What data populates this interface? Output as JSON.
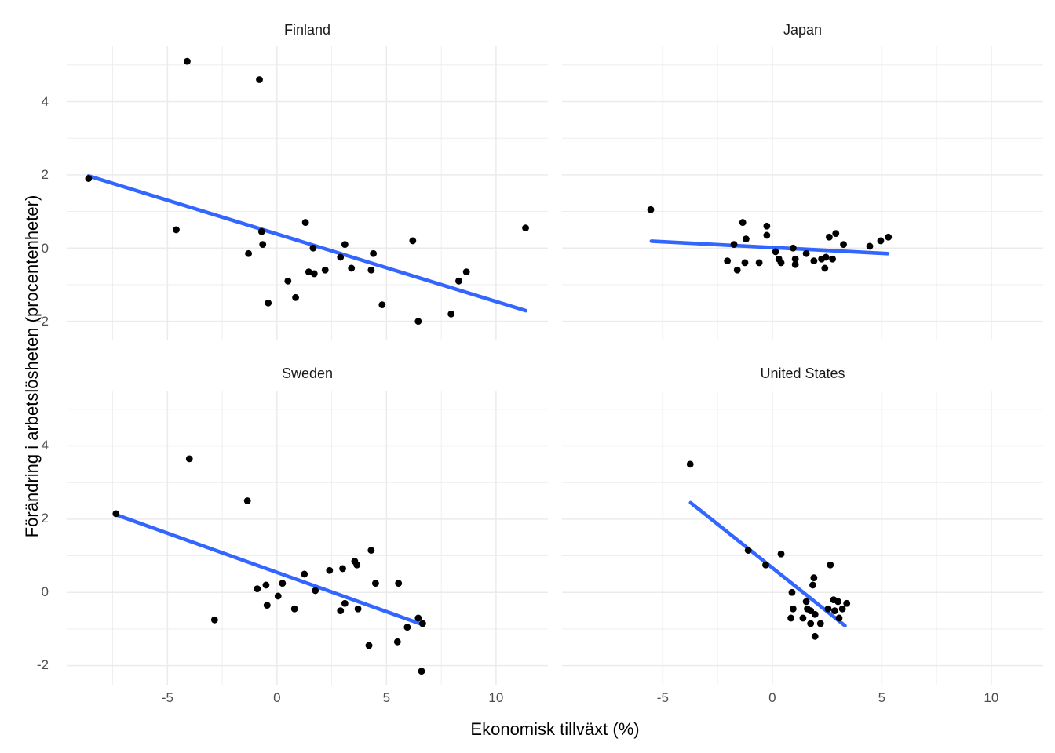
{
  "chart_data": {
    "type": "scatter",
    "title": "",
    "xlabel": "Ekonomisk tillväxt (%)",
    "ylabel": "Förändring i arbetslösheten (procentenheter)",
    "x_ticks": [
      -5,
      0,
      5,
      10
    ],
    "y_ticks": [
      -2,
      0,
      2,
      4
    ],
    "x_minor_ticks": [
      -7.5,
      -2.5,
      2.5,
      7.5
    ],
    "y_minor_ticks": [
      -1,
      1,
      3,
      5
    ],
    "xlim": [
      -9.6,
      12.37
    ],
    "ylim": [
      -2.53,
      5.51
    ],
    "grid": true,
    "legend": "none",
    "point_color": "#000000",
    "trend_color": "#3366FF",
    "grid_color": "#ebebeb",
    "tick_color": "#4d4d4d",
    "facets": [
      {
        "title": "Finland",
        "trend": {
          "x1": -8.6,
          "y1": 1.97,
          "x2": 11.36,
          "y2": -1.71
        },
        "points": [
          [
            -8.6,
            1.9
          ],
          [
            -4.6,
            0.5
          ],
          [
            -4.1,
            5.1
          ],
          [
            -1.3,
            -0.15
          ],
          [
            -0.8,
            4.6
          ],
          [
            -0.7,
            0.45
          ],
          [
            -0.65,
            0.1
          ],
          [
            -0.4,
            -1.5
          ],
          [
            0.5,
            -0.9
          ],
          [
            0.85,
            -1.35
          ],
          [
            1.3,
            0.7
          ],
          [
            1.45,
            -0.65
          ],
          [
            1.65,
            0.0
          ],
          [
            1.7,
            -0.7
          ],
          [
            2.2,
            -0.6
          ],
          [
            2.9,
            -0.25
          ],
          [
            3.1,
            0.1
          ],
          [
            3.4,
            -0.55
          ],
          [
            4.3,
            -0.6
          ],
          [
            4.4,
            -0.15
          ],
          [
            4.8,
            -1.55
          ],
          [
            6.2,
            0.2
          ],
          [
            6.45,
            -2.0
          ],
          [
            7.95,
            -1.8
          ],
          [
            8.3,
            -0.9
          ],
          [
            8.65,
            -0.65
          ],
          [
            11.35,
            0.55
          ]
        ]
      },
      {
        "title": "Japan",
        "trend": {
          "x1": -5.52,
          "y1": 0.19,
          "x2": 5.27,
          "y2": -0.15
        },
        "points": [
          [
            -5.55,
            1.05
          ],
          [
            -2.05,
            -0.35
          ],
          [
            -1.75,
            0.1
          ],
          [
            -1.6,
            -0.6
          ],
          [
            -1.35,
            0.7
          ],
          [
            -1.25,
            -0.4
          ],
          [
            -1.2,
            0.25
          ],
          [
            -0.6,
            -0.4
          ],
          [
            -0.25,
            0.6
          ],
          [
            -0.25,
            0.35
          ],
          [
            0.15,
            -0.1
          ],
          [
            0.3,
            -0.3
          ],
          [
            0.4,
            -0.4
          ],
          [
            0.95,
            0.0
          ],
          [
            1.05,
            -0.3
          ],
          [
            1.05,
            -0.45
          ],
          [
            1.55,
            -0.15
          ],
          [
            1.9,
            -0.35
          ],
          [
            2.25,
            -0.3
          ],
          [
            2.4,
            -0.55
          ],
          [
            2.45,
            -0.25
          ],
          [
            2.6,
            0.3
          ],
          [
            2.75,
            -0.3
          ],
          [
            2.9,
            0.4
          ],
          [
            3.25,
            0.1
          ],
          [
            4.45,
            0.05
          ],
          [
            4.95,
            0.2
          ],
          [
            5.3,
            0.3
          ]
        ]
      },
      {
        "title": "Sweden",
        "trend": {
          "x1": -7.34,
          "y1": 2.12,
          "x2": 6.61,
          "y2": -0.87
        },
        "points": [
          [
            -7.35,
            2.15
          ],
          [
            -4.0,
            3.65
          ],
          [
            -2.85,
            -0.75
          ],
          [
            -1.35,
            2.5
          ],
          [
            -0.9,
            0.1
          ],
          [
            -0.5,
            0.2
          ],
          [
            -0.45,
            -0.35
          ],
          [
            0.05,
            -0.1
          ],
          [
            0.25,
            0.25
          ],
          [
            0.8,
            -0.45
          ],
          [
            1.25,
            0.5
          ],
          [
            1.75,
            0.05
          ],
          [
            2.4,
            0.6
          ],
          [
            2.9,
            -0.5
          ],
          [
            3.0,
            0.65
          ],
          [
            3.1,
            -0.3
          ],
          [
            3.55,
            0.85
          ],
          [
            3.65,
            0.75
          ],
          [
            3.7,
            -0.45
          ],
          [
            4.2,
            -1.45
          ],
          [
            4.3,
            1.15
          ],
          [
            4.5,
            0.25
          ],
          [
            5.5,
            -1.35
          ],
          [
            5.55,
            0.25
          ],
          [
            5.95,
            -0.95
          ],
          [
            6.45,
            -0.7
          ],
          [
            6.6,
            -2.15
          ],
          [
            6.65,
            -0.85
          ]
        ]
      },
      {
        "title": "United States",
        "trend": {
          "x1": -3.73,
          "y1": 2.45,
          "x2": 3.32,
          "y2": -0.91
        },
        "points": [
          [
            -3.75,
            3.5
          ],
          [
            -1.1,
            1.15
          ],
          [
            -0.3,
            0.75
          ],
          [
            0.4,
            1.05
          ],
          [
            0.85,
            -0.7
          ],
          [
            0.9,
            0.0
          ],
          [
            0.95,
            -0.45
          ],
          [
            1.4,
            -0.7
          ],
          [
            1.55,
            -0.25
          ],
          [
            1.6,
            -0.45
          ],
          [
            1.75,
            -0.5
          ],
          [
            1.75,
            -0.85
          ],
          [
            1.85,
            0.2
          ],
          [
            1.9,
            0.4
          ],
          [
            1.95,
            -0.6
          ],
          [
            1.95,
            -1.2
          ],
          [
            2.2,
            -0.85
          ],
          [
            2.55,
            -0.45
          ],
          [
            2.65,
            0.75
          ],
          [
            2.8,
            -0.2
          ],
          [
            2.85,
            -0.5
          ],
          [
            3.0,
            -0.25
          ],
          [
            3.05,
            -0.7
          ],
          [
            3.2,
            -0.45
          ],
          [
            3.4,
            -0.3
          ]
        ]
      }
    ]
  }
}
